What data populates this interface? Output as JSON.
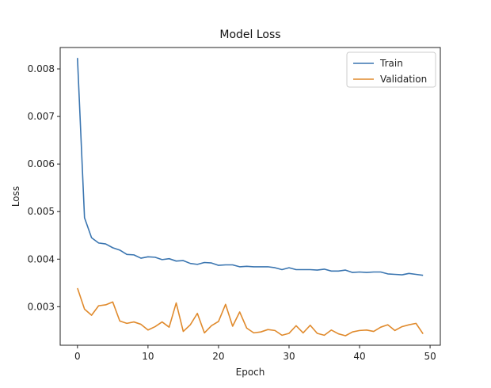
{
  "chart_data": {
    "type": "line",
    "title": "Model Loss",
    "xlabel": "Epoch",
    "ylabel": "Loss",
    "xlim": [
      -2.45,
      51.45
    ],
    "ylim": [
      0.00219,
      0.00845
    ],
    "xticks": [
      0,
      10,
      20,
      30,
      40,
      50
    ],
    "xtick_labels": [
      "0",
      "10",
      "20",
      "30",
      "40",
      "50"
    ],
    "yticks": [
      0.003,
      0.004,
      0.005,
      0.006,
      0.007,
      0.008
    ],
    "ytick_labels": [
      "0.003",
      "0.004",
      "0.005",
      "0.006",
      "0.007",
      "0.008"
    ],
    "legend_position": "top-right",
    "x": [
      0,
      1,
      2,
      3,
      4,
      5,
      6,
      7,
      8,
      9,
      10,
      11,
      12,
      13,
      14,
      15,
      16,
      17,
      18,
      19,
      20,
      21,
      22,
      23,
      24,
      25,
      26,
      27,
      28,
      29,
      30,
      31,
      32,
      33,
      34,
      35,
      36,
      37,
      38,
      39,
      40,
      41,
      42,
      43,
      44,
      45,
      46,
      47,
      48,
      49
    ],
    "series": [
      {
        "name": "Train",
        "color": "#3a75b0",
        "values": [
          0.00823,
          0.00487,
          0.00445,
          0.00434,
          0.00432,
          0.00424,
          0.00419,
          0.0041,
          0.00409,
          0.00402,
          0.00405,
          0.00404,
          0.00399,
          0.00401,
          0.00396,
          0.00397,
          0.00391,
          0.00389,
          0.00393,
          0.00392,
          0.00387,
          0.00388,
          0.00388,
          0.00384,
          0.00385,
          0.00384,
          0.00384,
          0.00384,
          0.00382,
          0.00378,
          0.00382,
          0.00378,
          0.00378,
          0.00378,
          0.00377,
          0.00379,
          0.00375,
          0.00375,
          0.00377,
          0.00372,
          0.00373,
          0.00372,
          0.00373,
          0.00373,
          0.00369,
          0.00368,
          0.00367,
          0.0037,
          0.00368,
          0.00366
        ]
      },
      {
        "name": "Validation",
        "color": "#e08a2c",
        "values": [
          0.00339,
          0.00295,
          0.00282,
          0.00302,
          0.00304,
          0.0031,
          0.0027,
          0.00265,
          0.00268,
          0.00263,
          0.00251,
          0.00258,
          0.00268,
          0.00257,
          0.00308,
          0.00248,
          0.00262,
          0.00286,
          0.00245,
          0.0026,
          0.00269,
          0.00305,
          0.00259,
          0.00289,
          0.00255,
          0.00245,
          0.00247,
          0.00252,
          0.0025,
          0.0024,
          0.00244,
          0.0026,
          0.00245,
          0.00261,
          0.00244,
          0.0024,
          0.00251,
          0.00243,
          0.00239,
          0.00247,
          0.0025,
          0.00251,
          0.00248,
          0.00257,
          0.00262,
          0.0025,
          0.00258,
          0.00262,
          0.00265,
          0.00243
        ]
      }
    ]
  }
}
